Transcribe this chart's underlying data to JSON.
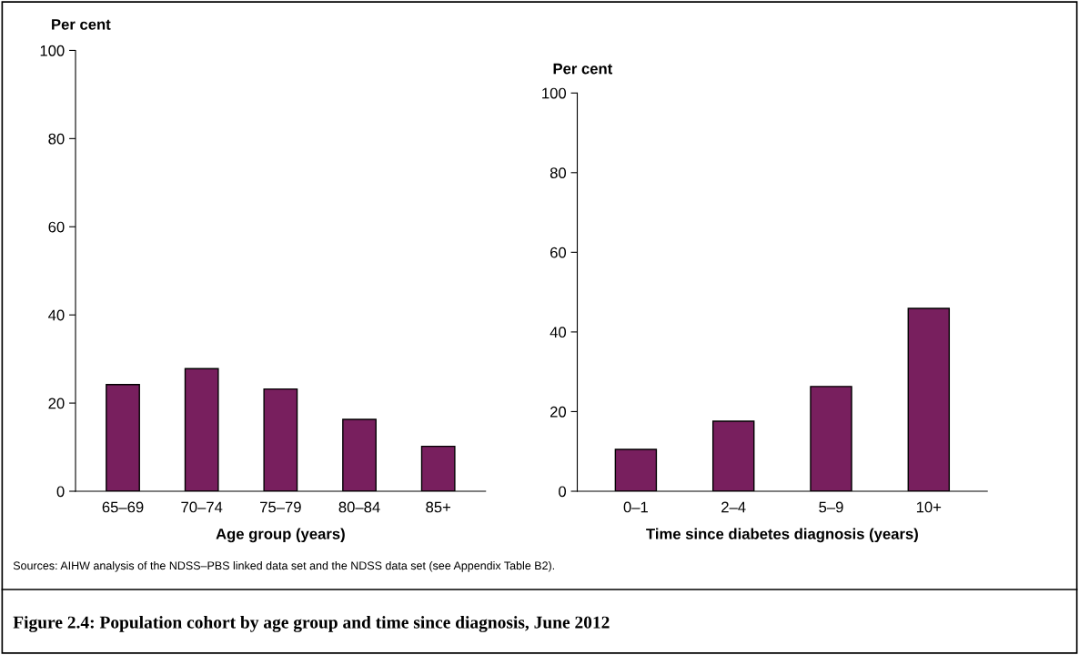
{
  "chart_data": [
    {
      "type": "bar",
      "title": "Figure 2.4: Population cohort by age group and time since diagnosis, June 2012",
      "annotations": [
        "Sources: AIHW analysis of the NDSS–PBS linked data set and the NDSS data set (see Appendix Table B2)."
      ],
      "xlabel": "Age group (years)",
      "ylabel": "Per cent",
      "categories": [
        "65–69",
        "70–74",
        "75–79",
        "80–84",
        "85+"
      ],
      "values": [
        24.2,
        27.8,
        23.2,
        16.3,
        10.2
      ],
      "color": "#781f5e",
      "ylim": [
        0,
        100
      ],
      "yticks": [
        0,
        20,
        40,
        60,
        80,
        100
      ],
      "grid": false
    },
    {
      "type": "bar",
      "xlabel": "Time since diabetes diagnosis (years)",
      "ylabel": "Per cent",
      "categories": [
        "0–1",
        "2–4",
        "5–9",
        "10+"
      ],
      "values": [
        10.5,
        17.6,
        26.3,
        45.9
      ],
      "color": "#781f5e",
      "ylim": [
        0,
        100
      ],
      "yticks": [
        0,
        20,
        40,
        60,
        80,
        100
      ],
      "grid": false
    }
  ]
}
